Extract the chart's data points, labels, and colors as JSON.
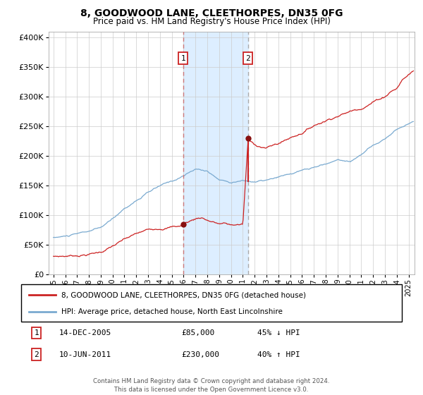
{
  "title": "8, GOODWOOD LANE, CLEETHORPES, DN35 0FG",
  "subtitle": "Price paid vs. HM Land Registry's House Price Index (HPI)",
  "legend_line1": "8, GOODWOOD LANE, CLEETHORPES, DN35 0FG (detached house)",
  "legend_line2": "HPI: Average price, detached house, North East Lincolnshire",
  "transaction1": {
    "date": "14-DEC-2005",
    "price": 85000,
    "pct": "45%",
    "dir": "↓",
    "x_year": 2005.958
  },
  "transaction2": {
    "date": "10-JUN-2011",
    "price": 230000,
    "pct": "40%",
    "dir": "↑",
    "x_year": 2011.44
  },
  "footer": "Contains HM Land Registry data © Crown copyright and database right 2024.\nThis data is licensed under the Open Government Licence v3.0.",
  "hpi_color": "#7aaad0",
  "price_color": "#cc2222",
  "dot_color": "#881111",
  "shading_color": "#ddeeff",
  "ylim": [
    0,
    410000
  ],
  "yticks": [
    0,
    50000,
    100000,
    150000,
    200000,
    250000,
    300000,
    350000,
    400000
  ],
  "xlim_start": 1994.6,
  "xlim_end": 2025.5,
  "xticks": [
    1995,
    1996,
    1997,
    1998,
    1999,
    2000,
    2001,
    2002,
    2003,
    2004,
    2005,
    2006,
    2007,
    2008,
    2009,
    2010,
    2011,
    2012,
    2013,
    2014,
    2015,
    2016,
    2017,
    2018,
    2019,
    2020,
    2021,
    2022,
    2023,
    2024,
    2025
  ]
}
